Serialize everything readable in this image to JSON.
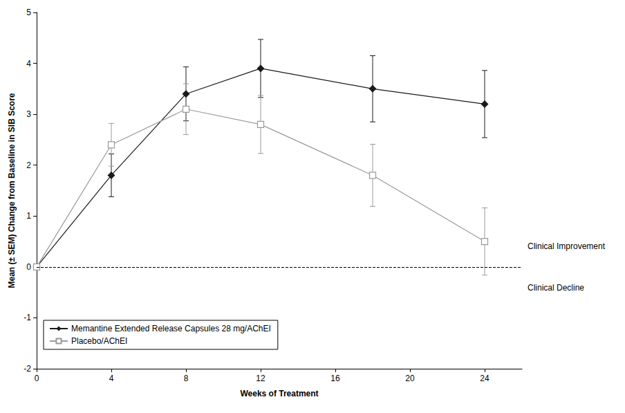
{
  "chart_data": {
    "type": "line",
    "xlabel": "Weeks of Treatment",
    "ylabel": "Mean (± SEM) Change from Baseline in SIB Score",
    "x": [
      0,
      4,
      8,
      12,
      18,
      24
    ],
    "xlim": [
      0,
      26
    ],
    "xticks": [
      0,
      4,
      8,
      12,
      16,
      20,
      24
    ],
    "ylim": [
      -2,
      5
    ],
    "yticks": [
      -2,
      -1,
      0,
      1,
      2,
      3,
      4,
      5
    ],
    "grid": false,
    "legend": "lower left",
    "series": [
      {
        "name": "Memantine Extended Release Capsules 28 mg/AChEI",
        "color": "#1a1a1a",
        "marker": "diamond",
        "line_style": "solid",
        "values": [
          0,
          1.8,
          3.4,
          3.9,
          3.5,
          3.2
        ],
        "sem": [
          null,
          0.42,
          0.53,
          0.57,
          0.65,
          0.66
        ]
      },
      {
        "name": "Placebo/AChEI",
        "color": "#9a9a9a",
        "marker": "square_open",
        "line_style": "solid",
        "values": [
          0,
          2.4,
          3.1,
          2.8,
          1.8,
          0.5
        ],
        "sem": [
          null,
          0.42,
          0.5,
          0.57,
          0.61,
          0.66
        ]
      }
    ],
    "reference_line": {
      "y": 0,
      "line_style": "dashed",
      "label_above": "Clinical Improvement",
      "label_below": "Clinical Decline"
    }
  }
}
